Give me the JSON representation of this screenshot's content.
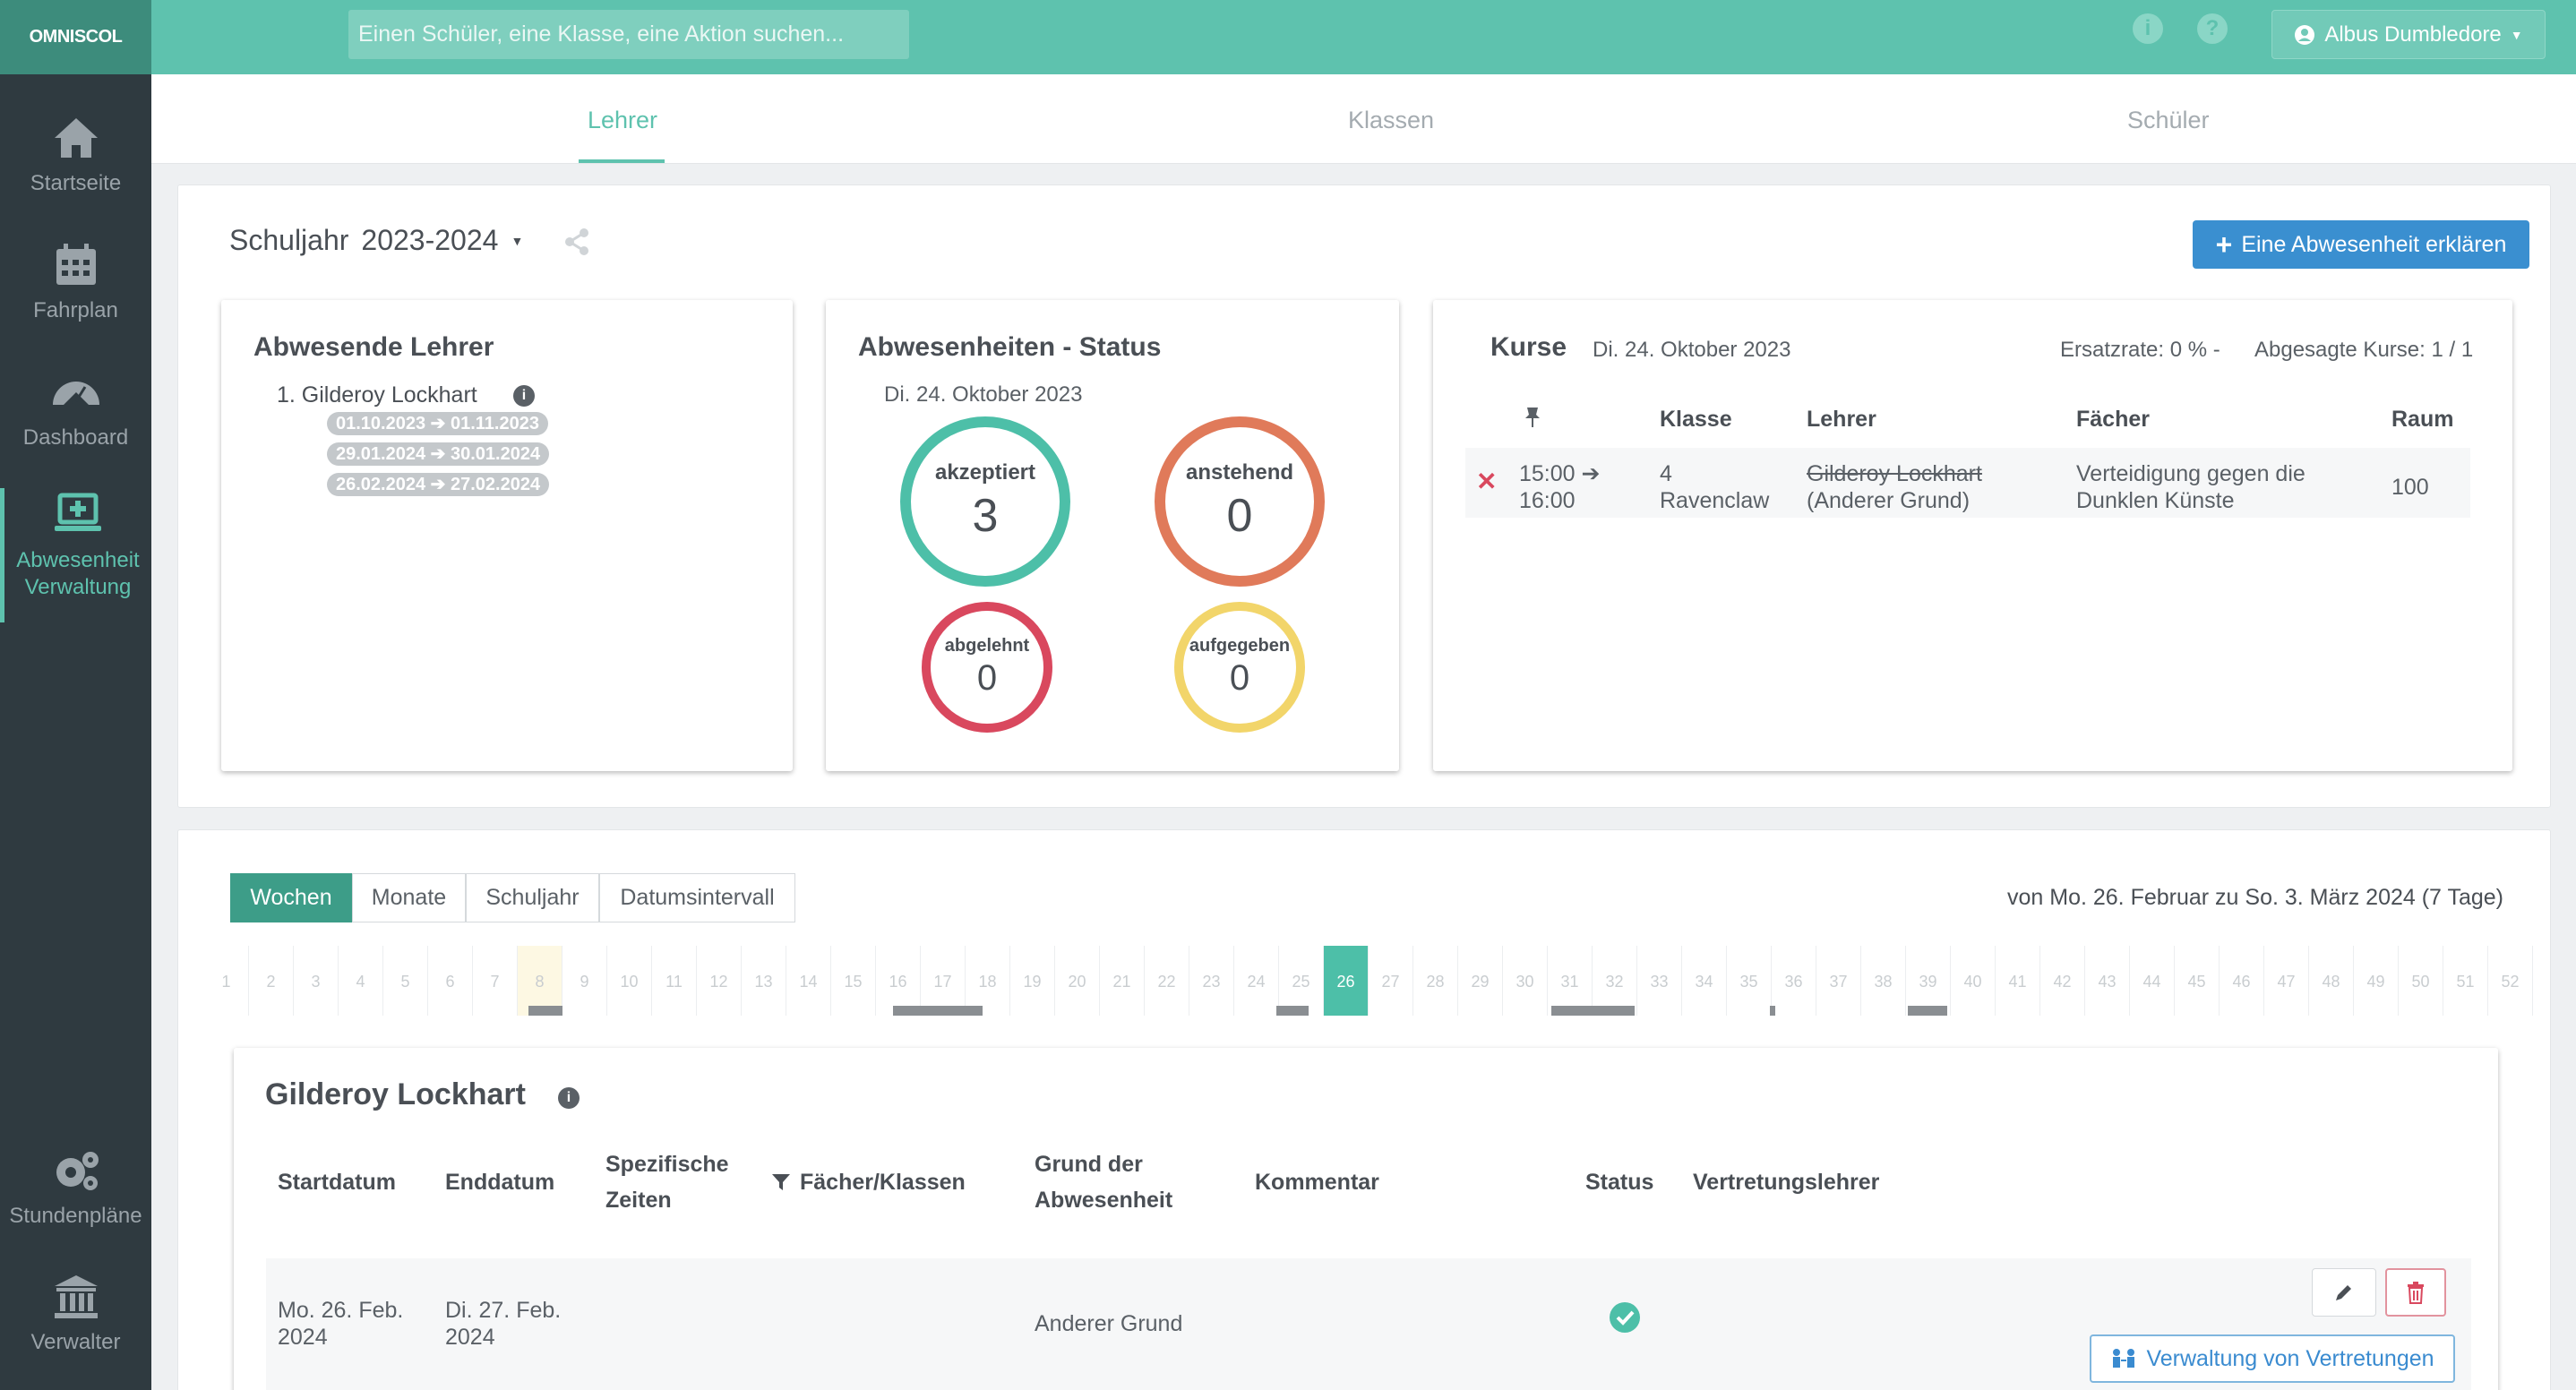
{
  "app": {
    "logo": "OMNISCOL"
  },
  "sidebar": {
    "items": [
      {
        "label": "Startseite",
        "icon": "home-icon"
      },
      {
        "label": "Fahrplan",
        "icon": "calendar-icon"
      },
      {
        "label": "Dashboard",
        "icon": "gauge-icon"
      },
      {
        "label_line1": "Abwesenheit",
        "label_line2": "Verwaltung",
        "icon": "laptop-plus-icon",
        "active": true
      },
      {
        "label": "Stundenpläne",
        "icon": "gears-icon"
      },
      {
        "label": "Verwalter",
        "icon": "institution-icon"
      }
    ]
  },
  "topbar": {
    "search_placeholder": "Einen Schüler, eine Klasse, eine Aktion suchen...",
    "user": "Albus Dumbledore"
  },
  "tabs": [
    {
      "label": "Lehrer",
      "active": true
    },
    {
      "label": "Klassen"
    },
    {
      "label": "Schüler"
    }
  ],
  "school_year": {
    "label": "Schuljahr",
    "value": "2023-2024"
  },
  "declare_button": "Eine Abwesenheit erklären",
  "absent_teachers": {
    "title": "Abwesende Lehrer",
    "teacher": "1. Gilderoy Lockhart",
    "ranges": [
      {
        "from": "01.10.2023",
        "to": "01.11.2023"
      },
      {
        "from": "29.01.2024",
        "to": "30.01.2024"
      },
      {
        "from": "26.02.2024",
        "to": "27.02.2024"
      }
    ]
  },
  "status": {
    "title": "Abwesenheiten - Status",
    "date": "Di. 24. Oktober 2023",
    "items": [
      {
        "label": "akzeptiert",
        "value": "3",
        "color": "#4dbfa8"
      },
      {
        "label": "anstehend",
        "value": "0",
        "color": "#e07a5a"
      },
      {
        "label": "abgelehnt",
        "value": "0",
        "color": "#d9485e"
      },
      {
        "label": "aufgegeben",
        "value": "0",
        "color": "#f2d56a"
      }
    ]
  },
  "courses": {
    "title": "Kurse",
    "date": "Di. 24. Oktober 2023",
    "rate": "Ersatzrate: 0 % -",
    "cancelled": "Abgesagte Kurse: 1 / 1",
    "headers": [
      "Klasse",
      "Lehrer",
      "Fächer",
      "Raum"
    ],
    "row": {
      "time_from": "15:00",
      "time_to": "16:00",
      "class_line1": "4",
      "class_line2": "Ravenclaw",
      "teacher": "Gilderoy Lockhart",
      "teacher_reason": "(Anderer Grund)",
      "subject_line1": "Verteidigung gegen die",
      "subject_line2": "Dunklen Künste",
      "room": "100"
    }
  },
  "period": {
    "segments": [
      "Wochen",
      "Monate",
      "Schuljahr",
      "Datumsintervall"
    ],
    "active": "Wochen",
    "range_text": "von Mo. 26. Februar zu So. 3. März 2024 (7 Tage)",
    "weeks": [
      "1",
      "2",
      "3",
      "4",
      "5",
      "6",
      "7",
      "8",
      "9",
      "10",
      "11",
      "12",
      "13",
      "14",
      "15",
      "16",
      "17",
      "18",
      "19",
      "20",
      "21",
      "22",
      "23",
      "24",
      "25",
      "26",
      "27",
      "28",
      "29",
      "30",
      "31",
      "32",
      "33",
      "34",
      "35",
      "36",
      "37",
      "38",
      "39",
      "40",
      "41",
      "42",
      "43",
      "44",
      "45",
      "46",
      "47",
      "48",
      "49",
      "50",
      "51",
      "52"
    ],
    "current_week": 26,
    "highlight_week": 8
  },
  "detail": {
    "teacher": "Gilderoy Lockhart",
    "headers": {
      "start": "Startdatum",
      "end": "Enddatum",
      "times_line1": "Spezifische",
      "times_line2": "Zeiten",
      "subjects": "Fächer/Klassen",
      "reason_line1": "Grund der",
      "reason_line2": "Abwesenheit",
      "comment": "Kommentar",
      "status": "Status",
      "substitute": "Vertretungslehrer"
    },
    "row": {
      "start_line1": "Mo. 26. Feb.",
      "start_line2": "2024",
      "end_line1": "Di. 27. Feb.",
      "end_line2": "2024",
      "reason": "Anderer Grund"
    },
    "manage_button": "Verwaltung von Vertretungen"
  }
}
